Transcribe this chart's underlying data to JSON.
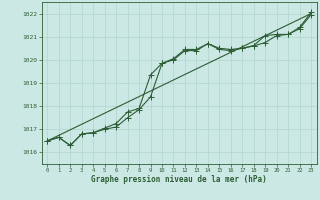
{
  "xlabel": "Graphe pression niveau de la mer (hPa)",
  "bg_color": "#cce8e4",
  "grid_color": "#b0d4cc",
  "line_color": "#2d5e35",
  "ylim": [
    1015.5,
    1022.5
  ],
  "xlim": [
    -0.5,
    23.5
  ],
  "yticks": [
    1016,
    1017,
    1018,
    1019,
    1020,
    1021,
    1022
  ],
  "xticks": [
    0,
    1,
    2,
    3,
    4,
    5,
    6,
    7,
    8,
    9,
    10,
    11,
    12,
    13,
    14,
    15,
    16,
    17,
    18,
    19,
    20,
    21,
    22,
    23
  ],
  "series1_x": [
    0,
    1,
    2,
    3,
    4,
    5,
    6,
    7,
    8,
    9,
    10,
    11,
    12,
    13,
    14,
    15,
    16,
    17,
    18,
    19,
    20,
    21,
    22,
    23
  ],
  "series1_y": [
    1016.5,
    1016.65,
    1016.3,
    1016.8,
    1016.85,
    1017.0,
    1017.1,
    1017.5,
    1017.85,
    1018.4,
    1019.85,
    1020.0,
    1020.4,
    1020.4,
    1020.7,
    1020.45,
    1020.4,
    1020.5,
    1020.6,
    1020.75,
    1021.05,
    1021.1,
    1021.35,
    1021.95
  ],
  "series2_x": [
    0,
    1,
    2,
    3,
    4,
    5,
    6,
    7,
    8,
    9,
    10,
    11,
    12,
    13,
    14,
    15,
    16,
    17,
    18,
    19,
    20,
    21,
    22,
    23
  ],
  "series2_y": [
    1016.5,
    1016.65,
    1016.3,
    1016.8,
    1016.85,
    1017.05,
    1017.25,
    1017.75,
    1017.9,
    1019.35,
    1019.85,
    1020.05,
    1020.45,
    1020.45,
    1020.7,
    1020.5,
    1020.45,
    1020.5,
    1020.62,
    1021.05,
    1021.1,
    1021.1,
    1021.4,
    1022.05
  ],
  "trend_x": [
    0,
    23
  ],
  "trend_y": [
    1016.5,
    1022.0
  ]
}
